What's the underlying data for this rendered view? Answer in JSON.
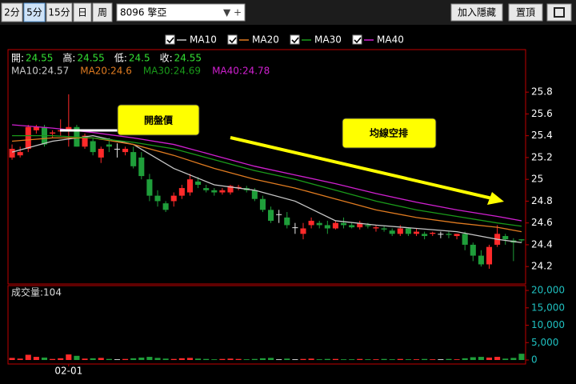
{
  "toolbar": {
    "periods": [
      "2分",
      "5分",
      "15分",
      "日",
      "周"
    ],
    "selected_period": 1,
    "symbol": "8096 擎亞",
    "buttons": [
      "加入隱藏",
      "置頂"
    ]
  },
  "chart_data": [
    {
      "type": "candlestick",
      "open": [
        25.2,
        25.22,
        25.28,
        25.45,
        25.48,
        25.42,
        25.44,
        25.45,
        25.48,
        25.3,
        25.35,
        25.2,
        25.32,
        25.28,
        25.25,
        25.25,
        25.2,
        25.0,
        24.85,
        24.78,
        24.8,
        24.85,
        24.88,
        24.98,
        24.92,
        24.9,
        24.88,
        24.88,
        24.92,
        24.92,
        24.9,
        24.82,
        24.72,
        24.68,
        24.65,
        24.56,
        24.5,
        24.58,
        24.6,
        24.58,
        24.55,
        24.6,
        24.58,
        24.56,
        24.58,
        24.55,
        24.55,
        24.53,
        24.5,
        24.55,
        24.5,
        24.5,
        24.5,
        24.5,
        24.5,
        24.48,
        24.5,
        24.4,
        24.3,
        24.22,
        24.4,
        24.48,
        24.44,
        24.45
      ],
      "high": [
        25.32,
        25.3,
        25.5,
        25.5,
        25.5,
        25.45,
        25.55,
        25.78,
        25.5,
        25.42,
        25.38,
        25.3,
        25.38,
        25.33,
        25.3,
        25.3,
        25.25,
        25.05,
        24.9,
        24.8,
        24.88,
        24.95,
        25.05,
        25.02,
        24.95,
        24.92,
        24.92,
        24.95,
        24.95,
        24.94,
        24.92,
        24.85,
        24.75,
        24.72,
        24.7,
        24.6,
        24.6,
        24.65,
        24.62,
        24.62,
        24.62,
        24.65,
        24.6,
        24.62,
        24.6,
        24.58,
        24.57,
        24.55,
        24.58,
        24.56,
        24.55,
        24.52,
        24.52,
        24.52,
        24.52,
        24.5,
        24.52,
        24.42,
        24.35,
        24.4,
        24.58,
        24.5,
        24.46,
        24.45
      ],
      "low": [
        25.18,
        25.2,
        25.25,
        25.42,
        25.3,
        25.38,
        25.4,
        25.3,
        25.3,
        25.28,
        25.22,
        25.15,
        25.25,
        25.2,
        25.22,
        25.1,
        25.0,
        24.8,
        24.75,
        24.7,
        24.75,
        24.82,
        24.85,
        24.92,
        24.88,
        24.85,
        24.86,
        24.86,
        24.9,
        24.88,
        24.8,
        24.7,
        24.6,
        24.6,
        24.55,
        24.5,
        24.45,
        24.55,
        24.55,
        24.5,
        24.54,
        24.55,
        24.55,
        24.54,
        24.55,
        24.52,
        24.52,
        24.48,
        24.48,
        24.48,
        24.48,
        24.45,
        24.48,
        24.46,
        24.46,
        24.45,
        24.35,
        24.25,
        24.2,
        24.18,
        24.38,
        24.4,
        24.25,
        24.42
      ],
      "close": [
        25.28,
        25.25,
        25.48,
        25.48,
        25.32,
        25.43,
        25.45,
        25.48,
        25.3,
        25.4,
        25.25,
        25.28,
        25.3,
        25.28,
        25.28,
        25.12,
        25.03,
        24.85,
        24.8,
        24.72,
        24.85,
        24.92,
        25.0,
        24.95,
        24.9,
        24.88,
        24.9,
        24.94,
        24.93,
        24.9,
        24.82,
        24.72,
        24.62,
        24.68,
        24.58,
        24.56,
        24.55,
        24.62,
        24.58,
        24.55,
        24.6,
        24.58,
        24.56,
        24.6,
        24.57,
        24.56,
        24.54,
        24.5,
        24.55,
        24.5,
        24.52,
        24.48,
        24.51,
        24.5,
        24.49,
        24.5,
        24.4,
        24.3,
        24.22,
        24.38,
        24.5,
        24.45,
        24.42,
        24.44
      ],
      "up_color": "#ff2a2a",
      "down_color": "#1f9e3a",
      "flat_color": "#e8e8e8",
      "series": [
        {
          "name": "MA10",
          "color": "#c8c8c8",
          "x": [
            0,
            5,
            10,
            15,
            20,
            25,
            30,
            35,
            40,
            45,
            50,
            55,
            60,
            63
          ],
          "values": [
            25.25,
            25.35,
            25.4,
            25.32,
            25.1,
            24.95,
            24.9,
            24.8,
            24.62,
            24.58,
            24.55,
            24.52,
            24.45,
            24.42
          ]
        },
        {
          "name": "MA20",
          "color": "#e07b20",
          "x": [
            0,
            5,
            10,
            15,
            20,
            25,
            30,
            35,
            40,
            45,
            50,
            55,
            60,
            63
          ],
          "values": [
            25.35,
            25.38,
            25.38,
            25.32,
            25.22,
            25.1,
            25.0,
            24.92,
            24.82,
            24.72,
            24.65,
            24.6,
            24.56,
            24.52
          ]
        },
        {
          "name": "MA30",
          "color": "#1a9a1a",
          "x": [
            0,
            5,
            10,
            15,
            20,
            25,
            30,
            35,
            40,
            45,
            50,
            55,
            60,
            63
          ],
          "values": [
            25.4,
            25.4,
            25.38,
            25.34,
            25.28,
            25.18,
            25.08,
            25.0,
            24.9,
            24.8,
            24.72,
            24.66,
            24.6,
            24.57
          ]
        },
        {
          "name": "MA40",
          "color": "#d020d0",
          "x": [
            0,
            5,
            10,
            15,
            20,
            25,
            30,
            35,
            40,
            45,
            50,
            55,
            60,
            63
          ],
          "values": [
            25.5,
            25.47,
            25.43,
            25.38,
            25.32,
            25.22,
            25.12,
            25.04,
            24.96,
            24.87,
            24.79,
            24.72,
            24.66,
            24.62
          ]
        }
      ],
      "ylim": [
        24.04,
        26.19
      ],
      "yticks": [
        24.2,
        24.4,
        24.6,
        24.8,
        25,
        25.2,
        25.4,
        25.6,
        25.8
      ],
      "info": [
        {
          "label": "開:",
          "value": 24.55
        },
        {
          "label": "高:",
          "value": 24.55
        },
        {
          "label": "低:",
          "value": 24.5
        },
        {
          "label": "收:",
          "value": 24.55
        }
      ],
      "ma_info": [
        "MA10:24.57",
        "MA20:24.6",
        "MA30:24.69",
        "MA40:24.78"
      ],
      "annotations": [
        "開盤價",
        "均線空排"
      ]
    },
    {
      "type": "bar",
      "title": "成交量:104",
      "categories": [
        null,
        null,
        null,
        null,
        null,
        null,
        null,
        "02-01",
        null,
        null,
        null,
        null,
        null,
        null,
        null,
        null,
        null,
        null,
        null,
        null,
        null,
        null,
        null,
        null,
        null,
        null,
        null,
        null,
        null,
        null,
        null,
        null,
        null,
        null,
        null,
        null,
        null,
        null,
        null,
        null,
        null,
        null,
        null,
        null,
        null,
        null,
        null,
        null,
        null,
        null,
        null,
        null,
        null,
        null,
        null,
        null,
        null,
        null,
        null,
        null,
        null,
        null,
        null,
        null
      ],
      "values": [
        600,
        400,
        1500,
        900,
        700,
        300,
        500,
        1600,
        1200,
        400,
        500,
        600,
        300,
        200,
        300,
        500,
        700,
        900,
        600,
        400,
        300,
        500,
        600,
        400,
        300,
        200,
        300,
        400,
        300,
        200,
        300,
        500,
        600,
        200,
        400,
        200,
        300,
        400,
        200,
        300,
        300,
        200,
        200,
        300,
        200,
        200,
        300,
        200,
        300,
        200,
        200,
        300,
        200,
        200,
        300,
        200,
        500,
        800,
        900,
        700,
        900,
        400,
        600,
        1800
      ],
      "ylim": [
        -1150,
        21400
      ],
      "yticks": [
        0,
        {
          "value": 5000,
          "label": "5,000"
        },
        {
          "value": 10000,
          "label": "10,000"
        },
        {
          "value": 15000,
          "label": "15,000"
        },
        {
          "value": 20000,
          "label": "20,000"
        }
      ]
    }
  ]
}
